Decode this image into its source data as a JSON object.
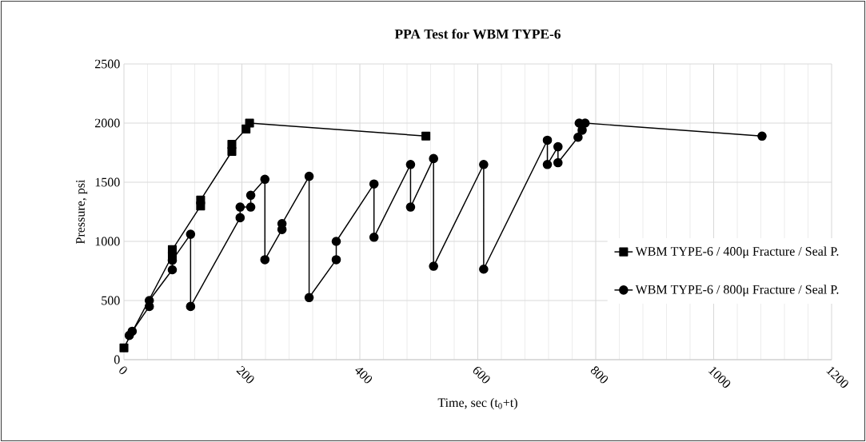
{
  "chart_data": {
    "type": "line",
    "title": "PPA  Test for WBM TYPE-6",
    "xlabel": "Time, sec (t$_{0}$+t)",
    "ylabel": "Pressure, psi",
    "series": [
      {
        "name": "WBM TYPE-6 / 400μ Fracture / Seal P.",
        "color": "#000000",
        "marker": "square",
        "x": [
          0,
          82,
          82,
          130,
          130,
          183,
          183,
          207,
          213,
          512
        ],
        "values": [
          100,
          880,
          930,
          1300,
          1350,
          1760,
          1820,
          1950,
          2000,
          1890
        ]
      },
      {
        "name": "WBM TYPE-6 / 800μ Fracture / Seal P.",
        "color": "#000000",
        "marker": "circle",
        "x": [
          9,
          14,
          43,
          43,
          82,
          82,
          113,
          113,
          197,
          197,
          215,
          215,
          239,
          239,
          268,
          268,
          314,
          314,
          360,
          360,
          424,
          424,
          486,
          486,
          525,
          525,
          610,
          610,
          718,
          718,
          736,
          736,
          770,
          772,
          777,
          782,
          1082
        ],
        "values": [
          205,
          240,
          450,
          500,
          760,
          840,
          1060,
          450,
          1200,
          1290,
          1290,
          1390,
          1525,
          845,
          1100,
          1150,
          1550,
          525,
          845,
          1000,
          1485,
          1035,
          1650,
          1290,
          1700,
          790,
          1650,
          765,
          1855,
          1650,
          1800,
          1665,
          1880,
          2000,
          1940,
          2000,
          1890
        ]
      }
    ],
    "xlim": [
      0,
      1200
    ],
    "ylim": [
      0,
      2500
    ],
    "xticks": [
      0,
      200,
      400,
      600,
      800,
      1000,
      1200
    ],
    "yticks": [
      0,
      500,
      1000,
      1500,
      2000,
      2500
    ],
    "grid": true,
    "legend": "right",
    "line_style": "solid"
  }
}
